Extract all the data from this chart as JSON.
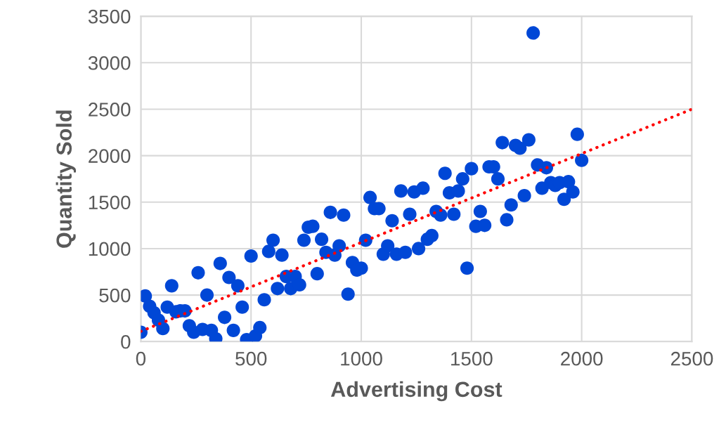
{
  "chart_data": {
    "type": "scatter",
    "xlabel": "Advertising Cost",
    "ylabel": "Quantity Sold",
    "xlim": [
      0,
      2500
    ],
    "xticks": [
      0,
      500,
      1000,
      1500,
      2000,
      2500
    ],
    "ylim": [
      0,
      3500
    ],
    "yticks": [
      0,
      500,
      1000,
      1500,
      2000,
      2500,
      3000,
      3500
    ],
    "grid": true,
    "legend": false,
    "series": [
      {
        "color": "#0047d6",
        "marker": "circle",
        "x": [
          0,
          20,
          40,
          60,
          80,
          100,
          120,
          140,
          160,
          180,
          200,
          220,
          240,
          260,
          280,
          300,
          320,
          340,
          360,
          380,
          400,
          420,
          440,
          460,
          480,
          500,
          520,
          540,
          560,
          580,
          600,
          620,
          640,
          660,
          680,
          700,
          720,
          740,
          760,
          780,
          800,
          820,
          840,
          860,
          880,
          900,
          920,
          940,
          960,
          980,
          1000,
          1020,
          1040,
          1060,
          1080,
          1100,
          1120,
          1140,
          1160,
          1180,
          1200,
          1220,
          1240,
          1260,
          1280,
          1300,
          1320,
          1340,
          1360,
          1380,
          1400,
          1420,
          1440,
          1460,
          1480,
          1500,
          1520,
          1540,
          1560,
          1580,
          1600,
          1620,
          1640,
          1660,
          1680,
          1700,
          1720,
          1740,
          1760,
          1780,
          1800,
          1820,
          1840,
          1860,
          1880,
          1900,
          1920,
          1940,
          1960,
          1980,
          2000
        ],
        "values": [
          100,
          490,
          380,
          310,
          230,
          140,
          370,
          600,
          320,
          330,
          330,
          170,
          100,
          740,
          130,
          500,
          120,
          30,
          840,
          260,
          690,
          120,
          600,
          370,
          20,
          920,
          60,
          150,
          450,
          970,
          1090,
          570,
          930,
          700,
          570,
          700,
          610,
          1090,
          1230,
          1240,
          730,
          1100,
          960,
          1390,
          930,
          1030,
          1360,
          510,
          850,
          770,
          790,
          1090,
          1550,
          1430,
          1430,
          940,
          1030,
          1300,
          940,
          1620,
          960,
          1370,
          1610,
          1000,
          1650,
          1100,
          1140,
          1400,
          1360,
          1810,
          1600,
          1370,
          1620,
          1750,
          790,
          1860,
          1240,
          1400,
          1250,
          1880,
          1880,
          1750,
          2140,
          1310,
          1470,
          2110,
          2080,
          1570,
          2170,
          3320,
          1900,
          1650,
          1870,
          1710,
          1680,
          1710,
          1530,
          1720,
          1610,
          2230,
          1950
        ]
      },
      {
        "type": "line",
        "color": "#ff0000",
        "line_style": "dotted",
        "x": [
          0,
          2500
        ],
        "values": [
          110,
          2500
        ]
      }
    ]
  }
}
